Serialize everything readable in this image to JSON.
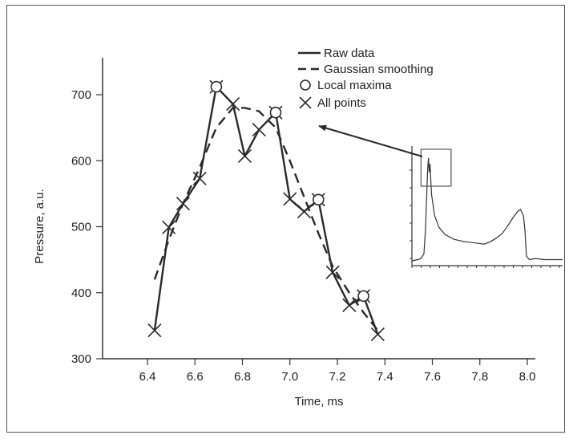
{
  "chart_data": {
    "type": "line",
    "xlabel": "Time, ms",
    "ylabel": "Pressure, a.u.",
    "xlim": [
      6.2,
      8.1
    ],
    "ylim": [
      300,
      750
    ],
    "x_ticks": [
      "6.4",
      "6.6",
      "6.8",
      "7.0",
      "7.2",
      "7.4",
      "7.6",
      "7.8",
      "8.0"
    ],
    "y_ticks": [
      "300",
      "400",
      "500",
      "600",
      "700"
    ],
    "grid": false,
    "legend_position": "top-right",
    "legend": [
      "Raw data",
      "Gaussian smoothing",
      "Local maxima",
      "All points"
    ],
    "series": [
      {
        "name": "Raw data",
        "style": "solid",
        "x": [
          6.43,
          6.49,
          6.55,
          6.62,
          6.69,
          6.76,
          6.81,
          6.87,
          6.94,
          7.0,
          7.06,
          7.12,
          7.18,
          7.25,
          7.31,
          7.37
        ],
        "y": [
          343,
          499,
          535,
          573,
          712,
          686,
          607,
          647,
          673,
          542,
          523,
          541,
          431,
          381,
          395,
          337
        ]
      },
      {
        "name": "Gaussian smoothing",
        "style": "dashed",
        "x": [
          6.43,
          6.49,
          6.55,
          6.62,
          6.69,
          6.76,
          6.81,
          6.87,
          6.94,
          7.0,
          7.06,
          7.12,
          7.18,
          7.25,
          7.31,
          7.37
        ],
        "y": [
          420,
          480,
          535,
          590,
          650,
          680,
          680,
          675,
          650,
          600,
          545,
          490,
          440,
          400,
          370,
          343
        ]
      },
      {
        "name": "Local maxima",
        "style": "circle-markers",
        "x": [
          6.69,
          6.94,
          7.12,
          7.31
        ],
        "y": [
          712,
          673,
          541,
          395
        ]
      },
      {
        "name": "All points",
        "style": "x-markers",
        "x": [
          6.43,
          6.49,
          6.55,
          6.62,
          6.69,
          6.76,
          6.81,
          6.87,
          6.94,
          7.0,
          7.06,
          7.12,
          7.18,
          7.25,
          7.31,
          7.37
        ],
        "y": [
          343,
          499,
          535,
          573,
          712,
          686,
          607,
          647,
          673,
          542,
          523,
          541,
          431,
          381,
          395,
          337
        ]
      }
    ],
    "inset": {
      "description_shown": "full pressure trace thumbnail with highlighted box around first peak",
      "trace": [
        [
          0.0,
          0.96
        ],
        [
          0.04,
          0.95
        ],
        [
          0.06,
          0.94
        ],
        [
          0.08,
          0.9
        ],
        [
          0.09,
          0.7
        ],
        [
          0.1,
          0.35
        ],
        [
          0.105,
          0.18
        ],
        [
          0.11,
          0.1
        ],
        [
          0.115,
          0.22
        ],
        [
          0.12,
          0.15
        ],
        [
          0.13,
          0.4
        ],
        [
          0.15,
          0.58
        ],
        [
          0.18,
          0.68
        ],
        [
          0.22,
          0.74
        ],
        [
          0.28,
          0.78
        ],
        [
          0.35,
          0.8
        ],
        [
          0.42,
          0.81
        ],
        [
          0.48,
          0.82
        ],
        [
          0.52,
          0.8
        ],
        [
          0.56,
          0.77
        ],
        [
          0.6,
          0.73
        ],
        [
          0.64,
          0.66
        ],
        [
          0.67,
          0.6
        ],
        [
          0.7,
          0.55
        ],
        [
          0.72,
          0.53
        ],
        [
          0.74,
          0.58
        ],
        [
          0.75,
          0.7
        ],
        [
          0.76,
          0.92
        ],
        [
          0.78,
          0.95
        ],
        [
          0.82,
          0.94
        ],
        [
          0.88,
          0.95
        ],
        [
          0.94,
          0.95
        ],
        [
          1.0,
          0.95
        ]
      ],
      "highlight_box": [
        0.06,
        0.26
      ]
    },
    "annotation": "arrow from inset highlight box to main plot"
  }
}
